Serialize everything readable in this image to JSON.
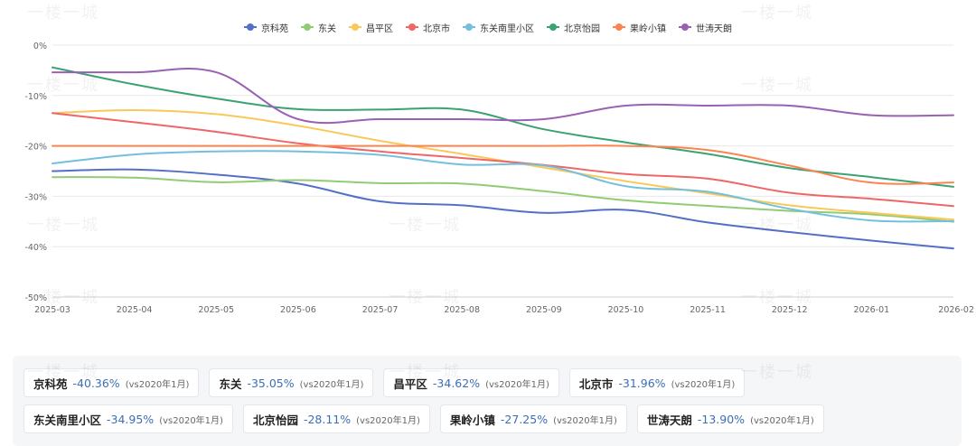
{
  "chart_data": {
    "type": "line",
    "categories": [
      "2025-03",
      "2025-04",
      "2025-05",
      "2025-06",
      "2025-07",
      "2025-08",
      "2025-09",
      "2025-10",
      "2025-11",
      "2025-12",
      "2026-01",
      "2026-02"
    ],
    "ylim": [
      -50,
      0
    ],
    "yticks": [
      0,
      -10,
      -20,
      -30,
      -40,
      -50
    ],
    "ytick_labels": [
      "0%",
      "-10%",
      "-20%",
      "-30%",
      "-40%",
      "-50%"
    ],
    "legend_position": "top-center",
    "grid": true,
    "series": [
      {
        "name": "京科苑",
        "color": "#5470c6",
        "values": [
          -25.0,
          -24.7,
          -25.7,
          -27.5,
          -31.0,
          -31.8,
          -33.3,
          -32.7,
          -35.2,
          -37.1,
          -38.8,
          -40.36
        ]
      },
      {
        "name": "东关",
        "color": "#91cc75",
        "values": [
          -26.2,
          -26.3,
          -27.2,
          -26.8,
          -27.4,
          -27.5,
          -29.0,
          -30.8,
          -31.9,
          -32.9,
          -33.6,
          -35.05
        ]
      },
      {
        "name": "昌平区",
        "color": "#fac858",
        "values": [
          -13.5,
          -12.9,
          -13.7,
          -16.0,
          -19.0,
          -21.6,
          -24.3,
          -27.0,
          -29.4,
          -31.8,
          -33.3,
          -34.62
        ]
      },
      {
        "name": "北京市",
        "color": "#ee6666",
        "values": [
          -13.5,
          -15.3,
          -17.2,
          -19.5,
          -21.1,
          -22.4,
          -23.8,
          -25.6,
          -26.5,
          -29.3,
          -30.5,
          -31.96
        ]
      },
      {
        "name": "东关南里小区",
        "color": "#73c0de",
        "values": [
          -23.5,
          -21.7,
          -21.1,
          -21.1,
          -21.8,
          -23.7,
          -23.9,
          -28.0,
          -29.1,
          -32.5,
          -34.8,
          -34.95
        ]
      },
      {
        "name": "北京怡园",
        "color": "#3ba272",
        "values": [
          -4.4,
          -7.8,
          -10.6,
          -12.7,
          -12.8,
          -12.8,
          -16.7,
          -19.3,
          -21.6,
          -24.4,
          -26.2,
          -28.11
        ]
      },
      {
        "name": "果岭小镇",
        "color": "#fc8452",
        "values": [
          -20.0,
          -20.0,
          -20.0,
          -20.0,
          -20.0,
          -20.0,
          -20.0,
          -20.0,
          -20.8,
          -23.9,
          -27.3,
          -27.25
        ]
      },
      {
        "name": "世涛天朗",
        "color": "#9a60b4",
        "values": [
          -5.4,
          -5.4,
          -5.4,
          -14.7,
          -14.7,
          -14.7,
          -14.7,
          -12.0,
          -12.0,
          -12.0,
          -13.9,
          -13.9
        ]
      }
    ]
  },
  "summary": {
    "note": "(vs2020年1月)",
    "cards": [
      {
        "name": "京科苑",
        "value": "-40.36%"
      },
      {
        "name": "东关",
        "value": "-35.05%"
      },
      {
        "name": "昌平区",
        "value": "-34.62%"
      },
      {
        "name": "北京市",
        "value": "-31.96%"
      },
      {
        "name": "东关南里小区",
        "value": "-34.95%"
      },
      {
        "name": "北京怡园",
        "value": "-28.11%"
      },
      {
        "name": "果岭小镇",
        "value": "-27.25%"
      },
      {
        "name": "世涛天朗",
        "value": "-13.90%"
      }
    ]
  },
  "watermark": "一楼一城"
}
